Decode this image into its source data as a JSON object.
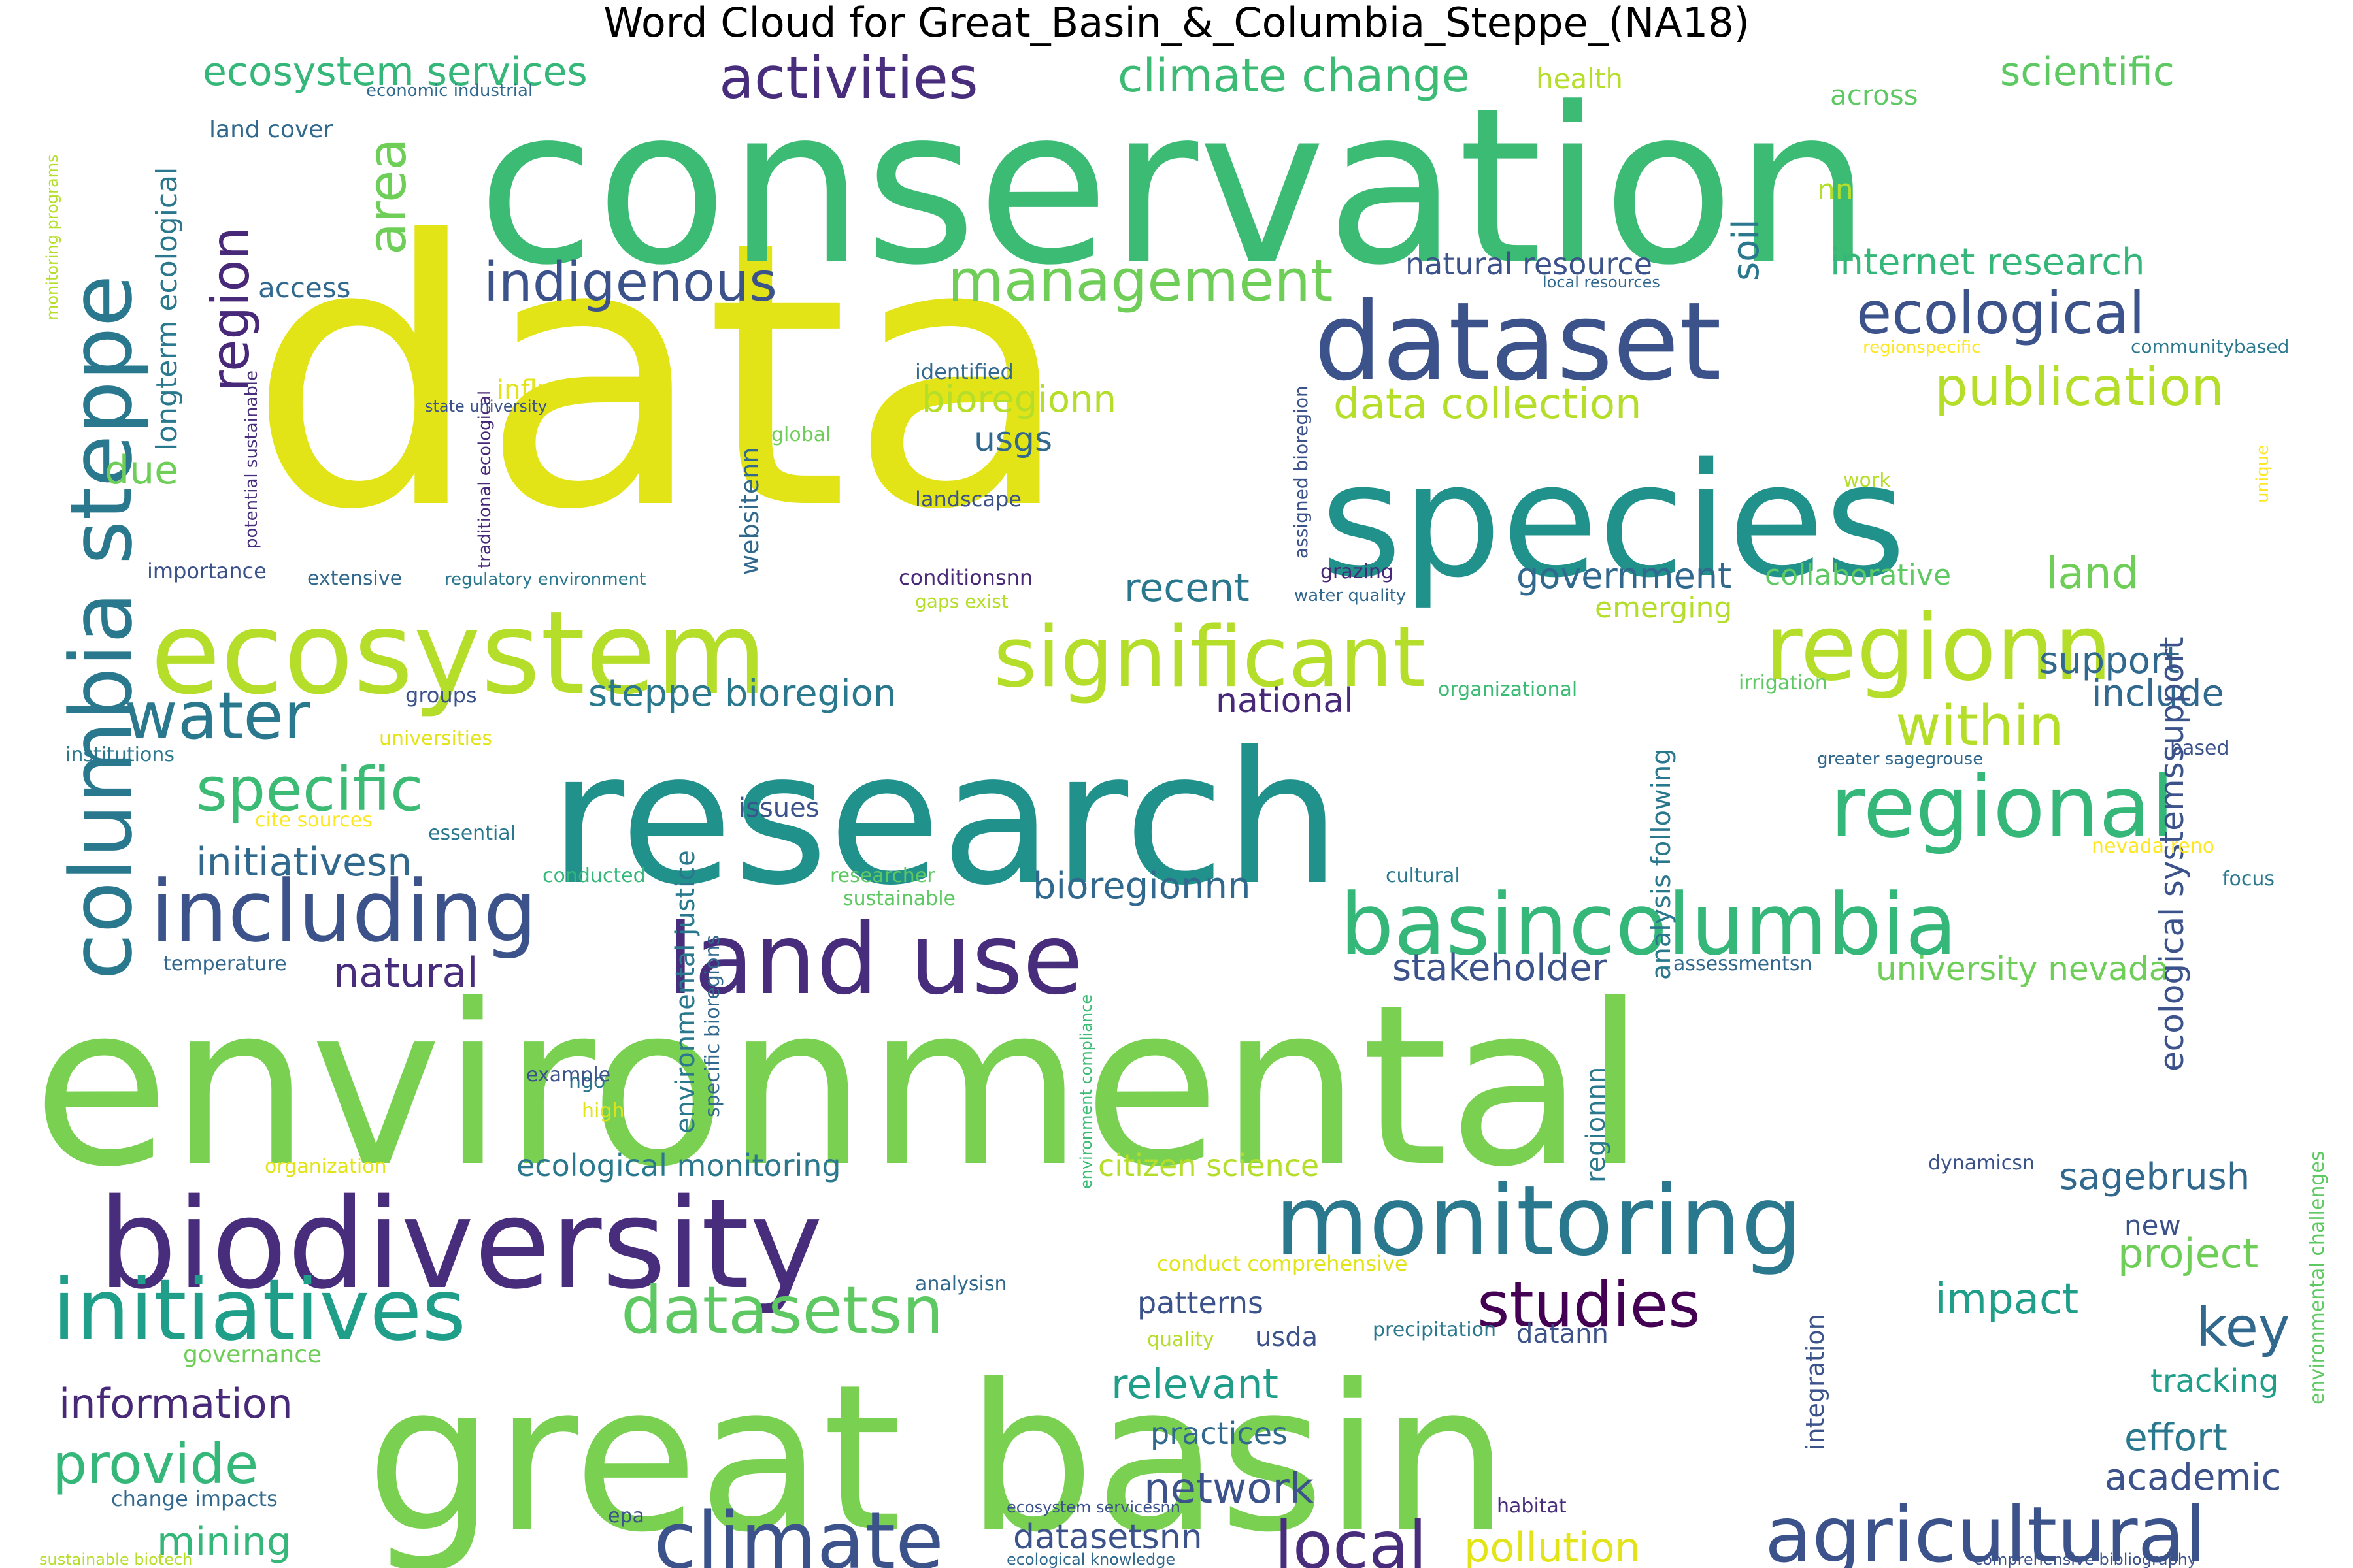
{
  "title": "Word Cloud for Great_Basin_&_Columbia_Steppe_(NA18)",
  "palette": [
    "#440154",
    "#482878",
    "#3e4989",
    "#31688e",
    "#26828e",
    "#1f9e89",
    "#35b779",
    "#6ece58",
    "#b5de2b",
    "#fde725"
  ],
  "words": [
    {
      "text": "data",
      "color": "#e2e418",
      "vertical": false
    },
    {
      "text": "conservation",
      "color": "#3cbb75",
      "vertical": false
    },
    {
      "text": "environmental",
      "color": "#7ad151",
      "vertical": false
    },
    {
      "text": "research",
      "color": "#21918c",
      "vertical": false
    },
    {
      "text": "great basin",
      "color": "#7ad151",
      "vertical": false
    },
    {
      "text": "species",
      "color": "#21918c",
      "vertical": false
    },
    {
      "text": "biodiversity",
      "color": "#472d7b",
      "vertical": false
    },
    {
      "text": "ecosystem",
      "color": "#b5de2b",
      "vertical": false
    },
    {
      "text": "dataset",
      "color": "#3b528b",
      "vertical": false
    },
    {
      "text": "monitoring",
      "color": "#2a788e",
      "vertical": false
    },
    {
      "text": "land use",
      "color": "#472d7b",
      "vertical": false
    },
    {
      "text": "regionn",
      "color": "#b5de2b",
      "vertical": false
    },
    {
      "text": "significant",
      "color": "#b5de2b",
      "vertical": false
    },
    {
      "text": "columbia steppe",
      "color": "#2a788e",
      "vertical": true
    },
    {
      "text": "basin",
      "color": "#35b779",
      "vertical": false
    },
    {
      "text": "columbia",
      "color": "#35b779",
      "vertical": false
    },
    {
      "text": "including",
      "color": "#3b528b",
      "vertical": false
    },
    {
      "text": "regional",
      "color": "#35b779",
      "vertical": false
    },
    {
      "text": "initiatives",
      "color": "#1f9e89",
      "vertical": false
    },
    {
      "text": "agricultural",
      "color": "#3b528b",
      "vertical": false
    },
    {
      "text": "climate",
      "color": "#3b528b",
      "vertical": false
    },
    {
      "text": "datasetsn",
      "color": "#5ec962",
      "vertical": false
    },
    {
      "text": "studies",
      "color": "#440154",
      "vertical": false
    },
    {
      "text": "water",
      "color": "#2a788e",
      "vertical": false
    },
    {
      "text": "specific",
      "color": "#3cbb75",
      "vertical": false
    },
    {
      "text": "activities",
      "color": "#472d7b",
      "vertical": false
    },
    {
      "text": "management",
      "color": "#6ece58",
      "vertical": false
    },
    {
      "text": "ecological",
      "color": "#3b528b",
      "vertical": false
    },
    {
      "text": "publication",
      "color": "#b5de2b",
      "vertical": false
    },
    {
      "text": "indigenous",
      "color": "#3b528b",
      "vertical": false
    },
    {
      "text": "within",
      "color": "#b5de2b",
      "vertical": false
    },
    {
      "text": "provide",
      "color": "#35b779",
      "vertical": false
    },
    {
      "text": "local",
      "color": "#472d7b",
      "vertical": false
    },
    {
      "text": "region",
      "color": "#482878",
      "vertical": true
    },
    {
      "text": "area",
      "color": "#6ece58",
      "vertical": true
    },
    {
      "text": "climate change",
      "color": "#3cbb75",
      "vertical": false
    },
    {
      "text": "ecosystem services",
      "color": "#35b779",
      "vertical": false
    },
    {
      "text": "scientific",
      "color": "#5ec962",
      "vertical": false
    },
    {
      "text": "key",
      "color": "#31688e",
      "vertical": false
    },
    {
      "text": "data collection",
      "color": "#b5de2b",
      "vertical": false
    },
    {
      "text": "steppe bioregion",
      "color": "#2a788e",
      "vertical": false
    },
    {
      "text": "initiativesn",
      "color": "#31688e",
      "vertical": false
    },
    {
      "text": "natural",
      "color": "#472d7b",
      "vertical": false
    },
    {
      "text": "information",
      "color": "#482878",
      "vertical": false
    },
    {
      "text": "mining",
      "color": "#35b779",
      "vertical": false
    },
    {
      "text": "network",
      "color": "#3b528b",
      "vertical": false
    },
    {
      "text": "relevant",
      "color": "#1f9e89",
      "vertical": false
    },
    {
      "text": "impact",
      "color": "#1f9e89",
      "vertical": false
    },
    {
      "text": "project",
      "color": "#6ece58",
      "vertical": false
    },
    {
      "text": "sagebrush",
      "color": "#31688e",
      "vertical": false
    },
    {
      "text": "pollution",
      "color": "#e2e418",
      "vertical": false
    },
    {
      "text": "datasetsnn",
      "color": "#3b528b",
      "vertical": false
    },
    {
      "text": "effort",
      "color": "#2a788e",
      "vertical": false
    },
    {
      "text": "academic",
      "color": "#3b528b",
      "vertical": false
    },
    {
      "text": "tracking",
      "color": "#1f9e89",
      "vertical": false
    },
    {
      "text": "land",
      "color": "#6ece58",
      "vertical": false
    },
    {
      "text": "include",
      "color": "#31688e",
      "vertical": false
    },
    {
      "text": "internet research",
      "color": "#35b779",
      "vertical": false
    },
    {
      "text": "natural resource",
      "color": "#3b528b",
      "vertical": false
    },
    {
      "text": "government",
      "color": "#31688e",
      "vertical": false
    },
    {
      "text": "recent",
      "color": "#2a788e",
      "vertical": false
    },
    {
      "text": "national",
      "color": "#482878",
      "vertical": false
    },
    {
      "text": "stakeholder",
      "color": "#3b528b",
      "vertical": false
    },
    {
      "text": "university nevada",
      "color": "#6ece58",
      "vertical": false
    },
    {
      "text": "bioregionnn",
      "color": "#31688e",
      "vertical": false
    },
    {
      "text": "ecological monitoring",
      "color": "#2a788e",
      "vertical": false
    },
    {
      "text": "citizen science",
      "color": "#b5de2b",
      "vertical": false
    },
    {
      "text": "bioregionn",
      "color": "#b5de2b",
      "vertical": false
    },
    {
      "text": "usgs",
      "color": "#31688e",
      "vertical": false
    },
    {
      "text": "collaborative",
      "color": "#5ec962",
      "vertical": false
    },
    {
      "text": "emerging",
      "color": "#b5de2b",
      "vertical": false
    },
    {
      "text": "patterns",
      "color": "#3b528b",
      "vertical": false
    },
    {
      "text": "practices",
      "color": "#31688e",
      "vertical": false
    },
    {
      "text": "usda",
      "color": "#3b528b",
      "vertical": false
    },
    {
      "text": "datann",
      "color": "#3b528b",
      "vertical": false
    },
    {
      "text": "new",
      "color": "#3b528b",
      "vertical": false
    },
    {
      "text": "across",
      "color": "#5ec962",
      "vertical": false
    },
    {
      "text": "health",
      "color": "#b5de2b",
      "vertical": false
    },
    {
      "text": "nn",
      "color": "#b5de2b",
      "vertical": false
    },
    {
      "text": "soil",
      "color": "#2a788e",
      "vertical": true
    },
    {
      "text": "support",
      "color": "#31688e",
      "vertical": false
    },
    {
      "text": "ecological systemssupport",
      "color": "#3b528b",
      "vertical": true
    },
    {
      "text": "longterm ecological",
      "color": "#2a788e",
      "vertical": true
    },
    {
      "text": "due",
      "color": "#6ece58",
      "vertical": false
    },
    {
      "text": "access",
      "color": "#31688e",
      "vertical": false
    },
    {
      "text": "land cover",
      "color": "#31688e",
      "vertical": false
    },
    {
      "text": "economic industrial",
      "color": "#31688e",
      "vertical": false
    },
    {
      "text": "influence",
      "color": "#e2e418",
      "vertical": false
    },
    {
      "text": "identified",
      "color": "#31688e",
      "vertical": false
    },
    {
      "text": "global",
      "color": "#6ece58",
      "vertical": false
    },
    {
      "text": "landscape",
      "color": "#3b528b",
      "vertical": false
    },
    {
      "text": "websitenn",
      "color": "#31688e",
      "vertical": true
    },
    {
      "text": "importance",
      "color": "#3b528b",
      "vertical": false
    },
    {
      "text": "extensive",
      "color": "#31688e",
      "vertical": false
    },
    {
      "text": "regulatory environment",
      "color": "#2a788e",
      "vertical": false
    },
    {
      "text": "conditionsnn",
      "color": "#482878",
      "vertical": false
    },
    {
      "text": "gaps exist",
      "color": "#b5de2b",
      "vertical": false
    },
    {
      "text": "grazing",
      "color": "#482878",
      "vertical": false
    },
    {
      "text": "water quality",
      "color": "#31688e",
      "vertical": false
    },
    {
      "text": "groups",
      "color": "#3b528b",
      "vertical": false
    },
    {
      "text": "universities",
      "color": "#e2e418",
      "vertical": false
    },
    {
      "text": "institutions",
      "color": "#2a788e",
      "vertical": false
    },
    {
      "text": "cite sources",
      "color": "#fde725",
      "vertical": false
    },
    {
      "text": "essential",
      "color": "#2a788e",
      "vertical": false
    },
    {
      "text": "issues",
      "color": "#3b528b",
      "vertical": false
    },
    {
      "text": "conducted",
      "color": "#35b779",
      "vertical": false
    },
    {
      "text": "researcher",
      "color": "#5ec962",
      "vertical": false
    },
    {
      "text": "sustainable",
      "color": "#5ec962",
      "vertical": false
    },
    {
      "text": "temperature",
      "color": "#31688e",
      "vertical": false
    },
    {
      "text": "ngo",
      "color": "#2a788e",
      "vertical": false
    },
    {
      "text": "example",
      "color": "#3b528b",
      "vertical": false
    },
    {
      "text": "high",
      "color": "#e2e418",
      "vertical": false
    },
    {
      "text": "organization",
      "color": "#e2e418",
      "vertical": false
    },
    {
      "text": "governance",
      "color": "#6ece58",
      "vertical": false
    },
    {
      "text": "change impacts",
      "color": "#31688e",
      "vertical": false
    },
    {
      "text": "sustainable biotech",
      "color": "#b5de2b",
      "vertical": false
    },
    {
      "text": "analysisn",
      "color": "#31688e",
      "vertical": false
    },
    {
      "text": "quality",
      "color": "#b5de2b",
      "vertical": false
    },
    {
      "text": "precipitation",
      "color": "#2a788e",
      "vertical": false
    },
    {
      "text": "epa",
      "color": "#3b528b",
      "vertical": false
    },
    {
      "text": "ecosystem servicesnn",
      "color": "#3b528b",
      "vertical": false
    },
    {
      "text": "ecological knowledge",
      "color": "#31688e",
      "vertical": false
    },
    {
      "text": "habitat",
      "color": "#472d7b",
      "vertical": false
    },
    {
      "text": "comprehensive bibliography",
      "color": "#3b528b",
      "vertical": false
    },
    {
      "text": "conduct comprehensive",
      "color": "#e2e418",
      "vertical": false
    },
    {
      "text": "dynamicsn",
      "color": "#3b528b",
      "vertical": false
    },
    {
      "text": "cultural",
      "color": "#2a788e",
      "vertical": false
    },
    {
      "text": "focus",
      "color": "#2a788e",
      "vertical": false
    },
    {
      "text": "nevada reno",
      "color": "#fde725",
      "vertical": false
    },
    {
      "text": "greater sagegrouse",
      "color": "#31688e",
      "vertical": false
    },
    {
      "text": "based",
      "color": "#3b528b",
      "vertical": false
    },
    {
      "text": "irrigation",
      "color": "#5ec962",
      "vertical": false
    },
    {
      "text": "organizational",
      "color": "#3cbb75",
      "vertical": false
    },
    {
      "text": "assessmentsn",
      "color": "#31688e",
      "vertical": false
    },
    {
      "text": "work",
      "color": "#b5de2b",
      "vertical": false
    },
    {
      "text": "unique",
      "color": "#fde725",
      "vertical": true
    },
    {
      "text": "regionspecific",
      "color": "#fde725",
      "vertical": false
    },
    {
      "text": "communitybased",
      "color": "#2a788e",
      "vertical": false
    },
    {
      "text": "local resources",
      "color": "#31688e",
      "vertical": false
    },
    {
      "text": "monitoring programs",
      "color": "#b5de2b",
      "vertical": true
    },
    {
      "text": "potential sustainable",
      "color": "#472d7b",
      "vertical": true
    },
    {
      "text": "traditional ecological",
      "color": "#482878",
      "vertical": true
    },
    {
      "text": "state university",
      "color": "#3b528b",
      "vertical": false
    },
    {
      "text": "assigned bioregion",
      "color": "#3b528b",
      "vertical": true
    },
    {
      "text": "environmental justice",
      "color": "#2a788e",
      "vertical": true
    },
    {
      "text": "specific bioregions",
      "color": "#31688e",
      "vertical": true
    },
    {
      "text": "analysis following",
      "color": "#2a788e",
      "vertical": true
    },
    {
      "text": "regionnn",
      "color": "#2a788e",
      "vertical": true
    },
    {
      "text": "integration",
      "color": "#3b528b",
      "vertical": true
    },
    {
      "text": "environment compliance",
      "color": "#3cbb75",
      "vertical": true
    },
    {
      "text": "environmental challenges",
      "color": "#5ec962",
      "vertical": true
    }
  ]
}
